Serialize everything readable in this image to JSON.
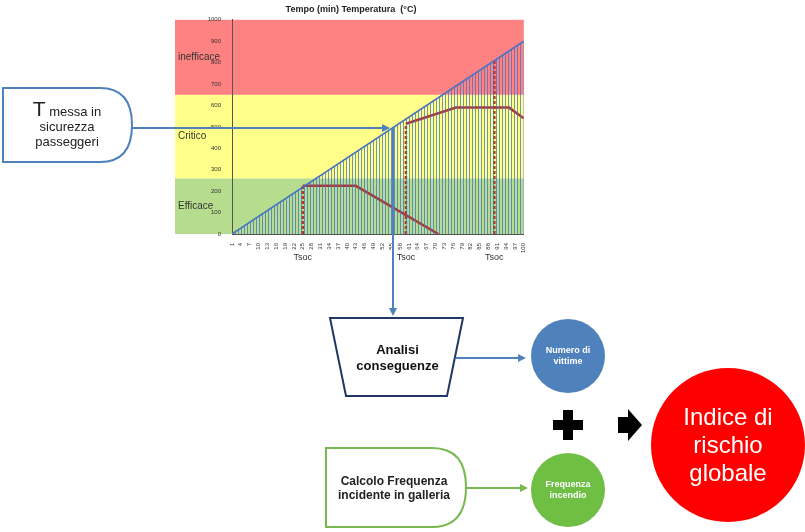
{
  "chart_data": {
    "type": "line",
    "title": "Tempo (min) Temperatura  (°C)",
    "xlim": [
      1,
      100
    ],
    "xticks": [
      1,
      4,
      7,
      10,
      13,
      16,
      19,
      22,
      25,
      28,
      31,
      34,
      37,
      40,
      43,
      46,
      49,
      52,
      55,
      58,
      61,
      64,
      67,
      70,
      73,
      76,
      79,
      82,
      85,
      88,
      91,
      94,
      97,
      100
    ],
    "ylim": [
      0,
      1000
    ],
    "yticks": [
      0,
      100,
      200,
      300,
      400,
      500,
      600,
      700,
      800,
      900,
      1000
    ],
    "grid": false,
    "series": [
      {
        "type": "area",
        "color": "#4472c4",
        "x": [
          1,
          100
        ],
        "values": [
          0,
          900
        ]
      },
      {
        "type": "line",
        "color": "#b2352f",
        "x": [
          25,
          43,
          71
        ],
        "values": [
          225,
          225,
          0
        ]
      },
      {
        "type": "line",
        "color": "#b2352f",
        "x": [
          60,
          77,
          95,
          100
        ],
        "values": [
          515,
          590,
          590,
          540
        ]
      },
      {
        "type": "line",
        "color": "#b2352f",
        "line_style": "dashed",
        "x": [
          25,
          25
        ],
        "values": [
          0,
          225
        ]
      },
      {
        "type": "line",
        "color": "#b2352f",
        "line_style": "dashed",
        "x": [
          60,
          60
        ],
        "values": [
          0,
          515
        ]
      },
      {
        "type": "line",
        "color": "#b2352f",
        "line_style": "dashed",
        "x": [
          90,
          90
        ],
        "values": [
          0,
          810
        ]
      }
    ],
    "bands": [
      {
        "label": "Efficace",
        "range": [
          0,
          260
        ],
        "color": "#b6dc8e"
      },
      {
        "label": "Critico",
        "range": [
          260,
          650
        ],
        "color": "#ffff8a"
      },
      {
        "label": "inefficace",
        "range": [
          650,
          1000
        ],
        "color": "#ff8282"
      }
    ],
    "annotations": [
      {
        "x": 25,
        "label": "Tsoc"
      },
      {
        "x": 60,
        "label": "Tsoc"
      },
      {
        "x": 90,
        "label": "Tsoc"
      }
    ]
  },
  "diagram": {
    "pointer_box": {
      "symbol": "T",
      "text": "messa in sicurezza passeggeri"
    },
    "nodes": {
      "analysis": "Analisi conseguenze",
      "victims": "Numero di vittime",
      "frequency_calc": "Calcolo Frequenza incidente in galleria",
      "frequency": "Frequenza incendio",
      "risk": "Indice di rischio globale"
    }
  }
}
